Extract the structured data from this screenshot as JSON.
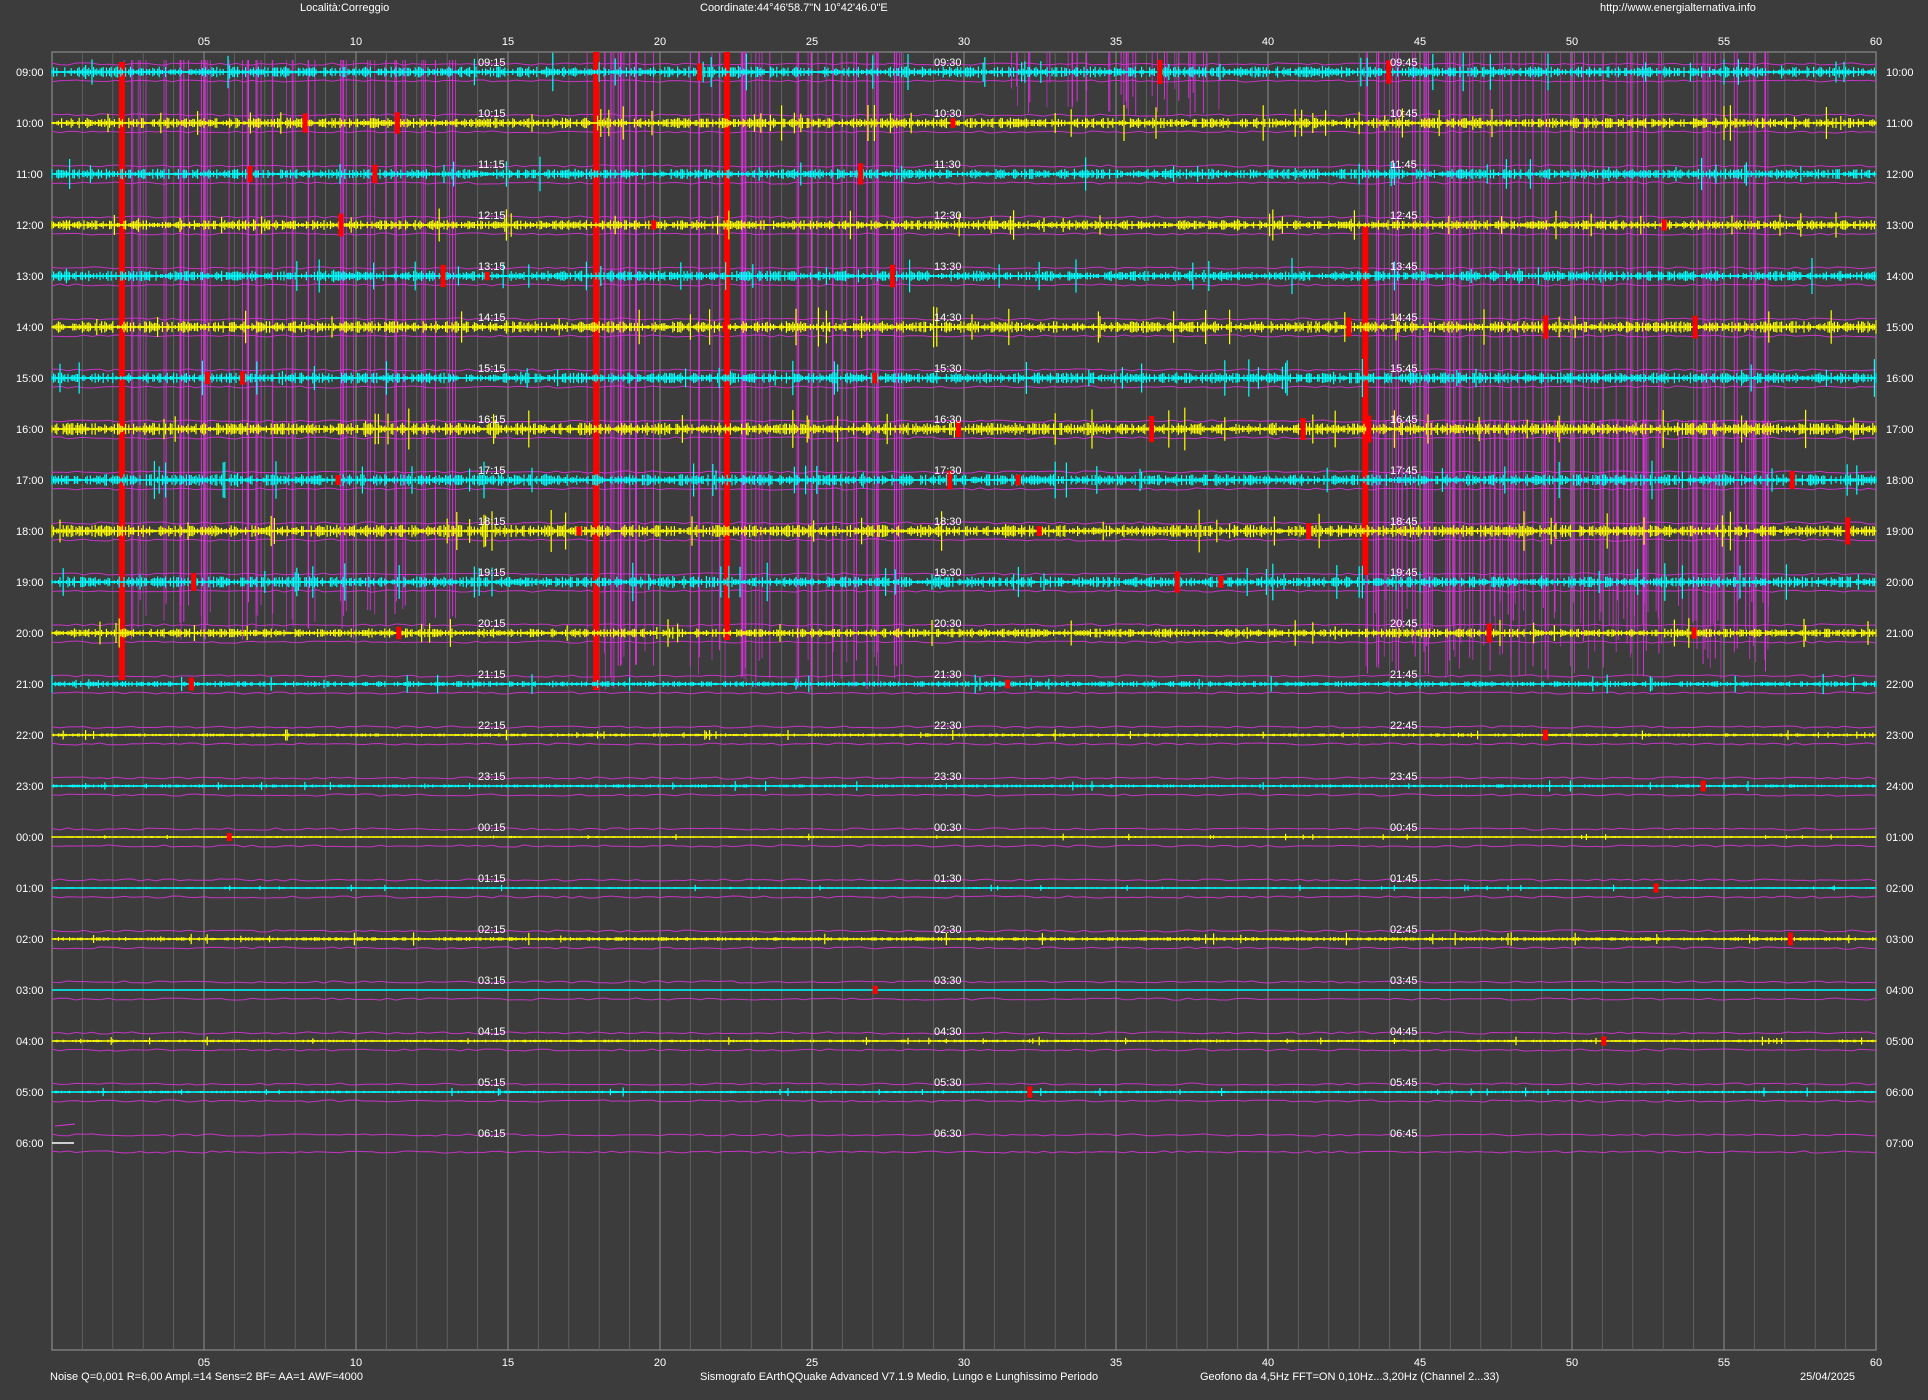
{
  "header": {
    "location": "Località:Correggio",
    "coordinates": "Coordinate:44°46'58.7\"N  10°42'46.0\"E",
    "website": "http://www.energialternativa.info"
  },
  "footer": {
    "noise_settings": "Noise Q=0,001 R=6,00 Ampl.=14 Sens=2 BF= AA=1 AWF=4000",
    "software": "Sismografo  EArthQQuake Advanced V7.1.9  Medio, Lungo e Lunghissimo Periodo",
    "geophone": "Geofono da 4,5Hz FFT=ON 0,10Hz...3,20Hz      (Channel 2...33)",
    "date": "25/04/2025"
  },
  "minute_ticks": [
    "05",
    "10",
    "15",
    "20",
    "25",
    "30",
    "35",
    "40",
    "45",
    "50",
    "55",
    "60"
  ],
  "rows": [
    {
      "left": "09:00",
      "right": "10:00",
      "m15": "09:15",
      "m30": "09:30",
      "m45": "09:45",
      "color": "cyan",
      "activity": 0.85
    },
    {
      "left": "10:00",
      "right": "11:00",
      "m15": "10:15",
      "m30": "10:30",
      "m45": "10:45",
      "color": "yellow",
      "activity": 0.8
    },
    {
      "left": "11:00",
      "right": "12:00",
      "m15": "11:15",
      "m30": "11:30",
      "m45": "11:45",
      "color": "cyan",
      "activity": 0.8
    },
    {
      "left": "12:00",
      "right": "13:00",
      "m15": "12:15",
      "m30": "12:30",
      "m45": "12:45",
      "color": "yellow",
      "activity": 0.75
    },
    {
      "left": "13:00",
      "right": "14:00",
      "m15": "13:15",
      "m30": "13:30",
      "m45": "13:45",
      "color": "cyan",
      "activity": 0.8
    },
    {
      "left": "14:00",
      "right": "15:00",
      "m15": "14:15",
      "m30": "14:30",
      "m45": "14:45",
      "color": "yellow",
      "activity": 0.9
    },
    {
      "left": "15:00",
      "right": "16:00",
      "m15": "15:15",
      "m30": "15:30",
      "m45": "15:45",
      "color": "cyan",
      "activity": 0.85
    },
    {
      "left": "16:00",
      "right": "17:00",
      "m15": "16:15",
      "m30": "16:30",
      "m45": "16:45",
      "color": "yellow",
      "activity": 0.95
    },
    {
      "left": "17:00",
      "right": "18:00",
      "m15": "17:15",
      "m30": "17:30",
      "m45": "17:45",
      "color": "cyan",
      "activity": 0.9
    },
    {
      "left": "18:00",
      "right": "19:00",
      "m15": "18:15",
      "m30": "18:30",
      "m45": "18:45",
      "color": "yellow",
      "activity": 0.95
    },
    {
      "left": "19:00",
      "right": "20:00",
      "m15": "19:15",
      "m30": "19:30",
      "m45": "19:45",
      "color": "cyan",
      "activity": 0.85
    },
    {
      "left": "20:00",
      "right": "21:00",
      "m15": "20:15",
      "m30": "20:30",
      "m45": "20:45",
      "color": "yellow",
      "activity": 0.7
    },
    {
      "left": "21:00",
      "right": "22:00",
      "m15": "21:15",
      "m30": "21:30",
      "m45": "21:45",
      "color": "cyan",
      "activity": 0.45
    },
    {
      "left": "22:00",
      "right": "23:00",
      "m15": "22:15",
      "m30": "22:30",
      "m45": "22:45",
      "color": "yellow",
      "activity": 0.25
    },
    {
      "left": "23:00",
      "right": "24:00",
      "m15": "23:15",
      "m30": "23:30",
      "m45": "23:45",
      "color": "cyan",
      "activity": 0.25
    },
    {
      "left": "00:00",
      "right": "01:00",
      "m15": "00:15",
      "m30": "00:30",
      "m45": "00:45",
      "color": "yellow",
      "activity": 0.15
    },
    {
      "left": "01:00",
      "right": "02:00",
      "m15": "01:15",
      "m30": "01:30",
      "m45": "01:45",
      "color": "cyan",
      "activity": 0.15
    },
    {
      "left": "02:00",
      "right": "03:00",
      "m15": "02:15",
      "m30": "02:30",
      "m45": "02:45",
      "color": "yellow",
      "activity": 0.3
    },
    {
      "left": "03:00",
      "right": "04:00",
      "m15": "03:15",
      "m30": "03:30",
      "m45": "03:45",
      "color": "cyan",
      "activity": 0.02
    },
    {
      "left": "04:00",
      "right": "05:00",
      "m15": "04:15",
      "m30": "04:30",
      "m45": "04:45",
      "color": "yellow",
      "activity": 0.2
    },
    {
      "left": "05:00",
      "right": "06:00",
      "m15": "05:15",
      "m30": "05:30",
      "m45": "05:45",
      "color": "cyan",
      "activity": 0.2
    },
    {
      "left": "06:00",
      "right": "07:00",
      "m15": "06:15",
      "m30": "06:30",
      "m45": "06:45",
      "color": "white",
      "activity": 0.0
    }
  ],
  "colors": {
    "background": "#3c3c3c",
    "cyan": "#00ffff",
    "yellow": "#ffff00",
    "magenta": "#dd33dd",
    "red": "#ff0000",
    "grid": "#7a7a7a",
    "text": "#ffffff"
  }
}
